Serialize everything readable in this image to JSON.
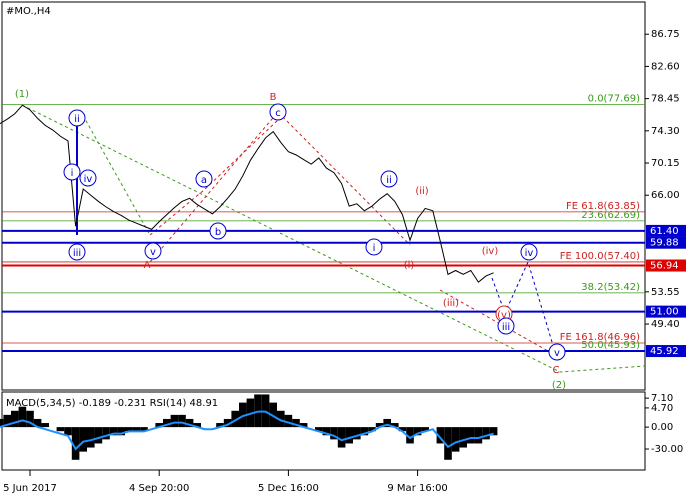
{
  "chart_data": {
    "type": "line",
    "title": "#MO.,H4",
    "categories": [
      null,
      null,
      null,
      null,
      "5 Jun 2017",
      null,
      null,
      null,
      null,
      null,
      null,
      null,
      null,
      null,
      null,
      null,
      null,
      null,
      null,
      null,
      null,
      "4 Sep 20:00",
      null,
      null,
      null,
      null,
      null,
      null,
      null,
      null,
      null,
      null,
      null,
      null,
      null,
      null,
      null,
      null,
      "5 Dec 16:00",
      null,
      null,
      null,
      null,
      null,
      null,
      null,
      null,
      null,
      null,
      null,
      null,
      null,
      null,
      null,
      null,
      "9 Mar 16:00",
      null,
      null,
      null,
      null,
      null,
      null,
      null,
      null,
      null,
      null
    ],
    "series": [
      {
        "color": "#000000",
        "values": [
          75.2,
          75.8,
          76.5,
          77.6,
          77.0,
          75.9,
          75.0,
          74.4,
          73.6,
          73.0,
          62.0,
          66.8,
          66.0,
          65.2,
          64.5,
          63.9,
          63.4,
          62.8,
          62.4,
          62.0,
          61.6,
          62.6,
          63.5,
          64.4,
          65.2,
          65.6,
          64.8,
          64.2,
          63.6,
          64.5,
          65.6,
          66.8,
          68.5,
          70.5,
          72.0,
          73.4,
          74.2,
          72.8,
          71.6,
          71.2,
          70.6,
          70.0,
          70.8,
          69.5,
          68.9,
          67.5,
          64.6,
          64.9,
          64.0,
          64.6,
          65.5,
          66.2,
          65.2,
          63.5,
          60.2,
          63.0,
          64.3,
          64.0,
          60.0,
          55.8,
          56.3,
          55.8,
          56.3,
          54.8,
          55.6,
          56.0
        ]
      }
    ],
    "ylim": [
      40.9,
      90.9
    ],
    "yticks": [
      86.75,
      {
        "value": 82.6,
        "label": "82.60"
      },
      78.45,
      {
        "value": 74.3,
        "label": "74.30"
      },
      70.15,
      {
        "value": 66,
        "label": "66.00"
      },
      53.55,
      {
        "value": 49.4,
        "label": "49.40"
      }
    ],
    "levels": [
      {
        "value": 61.4,
        "label": "61.40",
        "color": "#0000cc"
      },
      {
        "value": 59.88,
        "label": "59.88",
        "color": "#0000cc"
      },
      {
        "value": 56.94,
        "label": "56.94",
        "color": "#dd0000"
      },
      {
        "value": 51,
        "label": "51.00",
        "color": "#0000cc"
      },
      {
        "value": 45.92,
        "label": "45.92",
        "color": "#0000cc"
      }
    ],
    "fib_levels": [
      {
        "value": 77.69,
        "label": "0.0(77.69)",
        "color": "#3a9a1a"
      },
      {
        "value": 63.85,
        "label": "FE 61.8(63.85)",
        "color": "#cc2222"
      },
      {
        "value": 62.69,
        "label": "23.6(62.69)",
        "color": "#3a9a1a"
      },
      {
        "value": 57.4,
        "label": "FE 100.0(57.40)",
        "color": "#cc2222"
      },
      {
        "value": 53.42,
        "label": "38.2(53.42)",
        "color": "#3a9a1a"
      },
      {
        "value": 46.96,
        "label": "FE 161.8(46.96)",
        "color": "#cc2222"
      },
      {
        "value": 45.93,
        "label": "50.0(45.93)",
        "color": "#3a9a1a"
      }
    ],
    "annotations": [
      {
        "text": "(1)",
        "color": "#3a9a1a"
      },
      {
        "text": "ii",
        "color": "#0000cc"
      },
      {
        "text": "i",
        "color": "#0000cc"
      },
      {
        "text": "iv",
        "color": "#0000cc"
      },
      {
        "text": "iii",
        "color": "#0000cc"
      },
      {
        "text": "v",
        "color": "#0000cc"
      },
      {
        "text": "A",
        "color": "#cc2222"
      },
      {
        "text": "a",
        "color": "#0000cc"
      },
      {
        "text": "b",
        "color": "#0000cc"
      },
      {
        "text": "B",
        "color": "#cc2222"
      },
      {
        "text": "c",
        "color": "#0000cc"
      },
      {
        "text": "ii",
        "color": "#0000cc"
      },
      {
        "text": "(ii)",
        "color": "#cc2222"
      },
      {
        "text": "i",
        "color": "#0000cc"
      },
      {
        "text": "(i)",
        "color": "#cc2222"
      },
      {
        "text": "(iii)",
        "color": "#cc2222"
      },
      {
        "text": "(iv)",
        "color": "#cc2222"
      },
      {
        "text": "iv",
        "color": "#0000cc"
      },
      {
        "text": "(v)",
        "color": "#cc2222"
      },
      {
        "text": "iii",
        "color": "#0000cc"
      },
      {
        "text": "v",
        "color": "#0000cc"
      },
      {
        "text": "C",
        "color": "#cc2222"
      },
      {
        "text": "(2)",
        "color": "#3a9a1a"
      }
    ],
    "indicator": {
      "title": "MACD(5,34,5) -0.189 -0.231 RSI(14) 48.91",
      "ylim": [
        -10.5,
        8.6
      ],
      "yticks": [
        {
          "value": 7.1,
          "label": "7.10"
        },
        {
          "value": 4.7,
          "label": "4.70"
        },
        {
          "value": 0,
          "label": "0.00"
        }
      ],
      "y2lim": [
        -58.6,
        47.7
      ],
      "y2ticks": [
        {
          "value": -30,
          "label": "-30.00"
        }
      ],
      "histogram": {
        "color": "#000000",
        "values": [
          2,
          3,
          4,
          5,
          4,
          2,
          1,
          0,
          -1,
          -2,
          -8,
          -6,
          -5,
          -4,
          -3,
          -2,
          -2,
          -1,
          -1,
          -1,
          0,
          1,
          2,
          3,
          3,
          2,
          1,
          0,
          0,
          1,
          2,
          4,
          6,
          7,
          8,
          8,
          6,
          4,
          3,
          2,
          1,
          0,
          -1,
          -2,
          -3,
          -5,
          -4,
          -3,
          -2,
          -1,
          1,
          2,
          1,
          -1,
          -4,
          -2,
          -1,
          0,
          -4,
          -8,
          -6,
          -5,
          -4,
          -4,
          -3,
          -2
        ]
      },
      "line": {
        "color": "#1e90ff",
        "axis": "y2",
        "values": [
          0,
          3,
          6,
          9,
          6,
          0,
          -3,
          -6,
          -9,
          -12,
          -30,
          -20,
          -18,
          -15,
          -12,
          -9,
          -9,
          -6,
          -6,
          -6,
          -3,
          0,
          3,
          6,
          6,
          3,
          0,
          -3,
          -3,
          0,
          3,
          9,
          15,
          18,
          21,
          21,
          15,
          9,
          6,
          3,
          0,
          -3,
          -6,
          -9,
          -12,
          -18,
          -15,
          -12,
          -9,
          -6,
          0,
          3,
          0,
          -6,
          -15,
          -9,
          -6,
          -3,
          -15,
          -27,
          -21,
          -18,
          -15,
          -15,
          -12,
          -9
        ]
      }
    }
  }
}
